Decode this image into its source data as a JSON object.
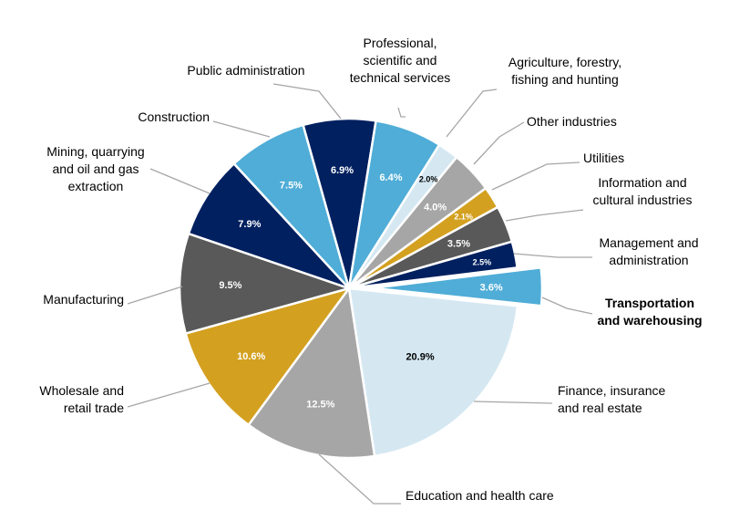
{
  "chart_data": {
    "type": "pie",
    "title": "",
    "slices": [
      {
        "label": "Finance, insurance and real estate",
        "value": 20.9,
        "value_label": "20.9%",
        "color": "#d5e8f2",
        "text_color": "#000000"
      },
      {
        "label": "Education and health care",
        "value": 12.5,
        "value_label": "12.5%",
        "color": "#a6a6a6",
        "text_color": "#ffffff"
      },
      {
        "label": "Wholesale and retail trade",
        "value": 10.6,
        "value_label": "10.6%",
        "color": "#d4a020",
        "text_color": "#ffffff"
      },
      {
        "label": "Manufacturing",
        "value": 9.5,
        "value_label": "9.5%",
        "color": "#595959",
        "text_color": "#ffffff"
      },
      {
        "label": "Mining, quarrying and oil and gas extraction",
        "value": 7.9,
        "value_label": "7.9%",
        "color": "#002060",
        "text_color": "#ffffff"
      },
      {
        "label": "Construction",
        "value": 7.5,
        "value_label": "7.5%",
        "color": "#4fadd7",
        "text_color": "#ffffff"
      },
      {
        "label": "Public administration",
        "value": 6.9,
        "value_label": "6.9%",
        "color": "#002060",
        "text_color": "#ffffff"
      },
      {
        "label": "Professional, scientific and technical services",
        "value": 6.4,
        "value_label": "6.4%",
        "color": "#4fadd7",
        "text_color": "#ffffff"
      },
      {
        "label": "Agriculture, forestry, fishing and hunting",
        "value": 2.0,
        "value_label": "2.0%",
        "color": "#d5e8f2",
        "text_color": "#000000"
      },
      {
        "label": "Other industries",
        "value": 4.0,
        "value_label": "4.0%",
        "color": "#a6a6a6",
        "text_color": "#ffffff"
      },
      {
        "label": "Utilities",
        "value": 2.1,
        "value_label": "2.1%",
        "color": "#d4a020",
        "text_color": "#ffffff"
      },
      {
        "label": "Information and cultural industries",
        "value": 3.5,
        "value_label": "3.5%",
        "color": "#595959",
        "text_color": "#ffffff"
      },
      {
        "label": "Management and administration",
        "value": 2.5,
        "value_label": "2.5%",
        "color": "#002060",
        "text_color": "#ffffff"
      },
      {
        "label": "Transportation and warehousing",
        "value": 3.6,
        "value_label": "3.6%",
        "color": "#4fadd7",
        "text_color": "#ffffff",
        "exploded": true,
        "highlight": true
      }
    ],
    "legend": "none"
  }
}
